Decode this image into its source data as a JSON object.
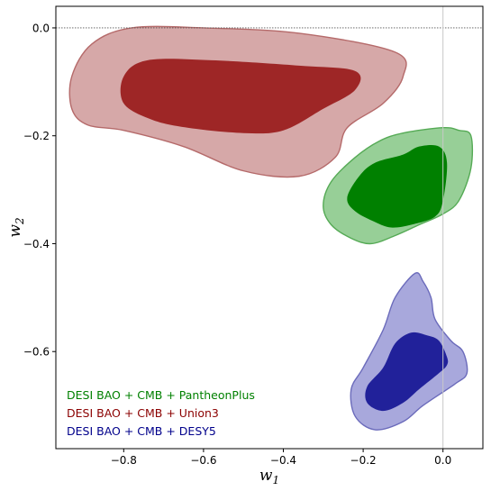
{
  "chart_data": {
    "type": "contour",
    "title": "",
    "xlabel": "w",
    "xlabel_sub": "1",
    "ylabel": "w",
    "ylabel_sub": "2",
    "xlim": [
      -0.97,
      0.1
    ],
    "ylim": [
      -0.78,
      0.04
    ],
    "xticks": [
      -0.8,
      -0.6,
      -0.4,
      -0.2,
      0.0
    ],
    "yticks": [
      0.0,
      -0.2,
      -0.4,
      -0.6
    ],
    "xtick_labels": [
      "−0.8",
      "−0.6",
      "−0.4",
      "−0.2",
      "0.0"
    ],
    "ytick_labels": [
      "0.0",
      "−0.2",
      "−0.4",
      "−0.6"
    ],
    "reference_lines": {
      "x": 0.0,
      "y": 0.0
    },
    "grid": false,
    "legend_position": "lower-left",
    "series": [
      {
        "name": "DESI BAO + CMB + PantheonPlus",
        "color": "#008000",
        "inner_fill": "#008000",
        "outer_fill": "#97cf97",
        "outer_edge": "#55aa55",
        "outer_contour": [
          [
            -0.3,
            -0.33
          ],
          [
            -0.28,
            -0.285
          ],
          [
            -0.22,
            -0.24
          ],
          [
            -0.16,
            -0.21
          ],
          [
            -0.1,
            -0.195
          ],
          [
            0.0,
            -0.185
          ],
          [
            0.04,
            -0.19
          ],
          [
            0.07,
            -0.2
          ],
          [
            0.07,
            -0.26
          ],
          [
            0.04,
            -0.32
          ],
          [
            0.0,
            -0.345
          ],
          [
            -0.06,
            -0.365
          ],
          [
            -0.12,
            -0.385
          ],
          [
            -0.18,
            -0.4
          ],
          [
            -0.23,
            -0.39
          ],
          [
            -0.28,
            -0.365
          ]
        ],
        "inner_contour": [
          [
            -0.24,
            -0.315
          ],
          [
            -0.21,
            -0.275
          ],
          [
            -0.17,
            -0.25
          ],
          [
            -0.1,
            -0.235
          ],
          [
            -0.06,
            -0.22
          ],
          [
            -0.01,
            -0.22
          ],
          [
            0.01,
            -0.25
          ],
          [
            0.0,
            -0.32
          ],
          [
            -0.02,
            -0.35
          ],
          [
            -0.08,
            -0.365
          ],
          [
            -0.13,
            -0.37
          ],
          [
            -0.17,
            -0.36
          ],
          [
            -0.22,
            -0.34
          ]
        ],
        "label_color": "#008000"
      },
      {
        "name": "DESI BAO + CMB + Union3",
        "color": "#8b0000",
        "inner_fill": "#9e2626",
        "outer_fill": "#d6a8a8",
        "outer_edge": "#b56a6a",
        "outer_contour": [
          [
            -0.93,
            -0.15
          ],
          [
            -0.93,
            -0.09
          ],
          [
            -0.88,
            -0.03
          ],
          [
            -0.78,
            0.0
          ],
          [
            -0.6,
            0.0
          ],
          [
            -0.36,
            -0.01
          ],
          [
            -0.12,
            -0.045
          ],
          [
            -0.1,
            -0.09
          ],
          [
            -0.15,
            -0.14
          ],
          [
            -0.24,
            -0.185
          ],
          [
            -0.27,
            -0.24
          ],
          [
            -0.36,
            -0.275
          ],
          [
            -0.5,
            -0.265
          ],
          [
            -0.65,
            -0.22
          ],
          [
            -0.8,
            -0.19
          ],
          [
            -0.89,
            -0.18
          ]
        ],
        "inner_contour": [
          [
            -0.8,
            -0.14
          ],
          [
            -0.8,
            -0.09
          ],
          [
            -0.74,
            -0.06
          ],
          [
            -0.58,
            -0.06
          ],
          [
            -0.36,
            -0.07
          ],
          [
            -0.22,
            -0.08
          ],
          [
            -0.22,
            -0.115
          ],
          [
            -0.3,
            -0.15
          ],
          [
            -0.4,
            -0.19
          ],
          [
            -0.5,
            -0.195
          ],
          [
            -0.64,
            -0.185
          ],
          [
            -0.73,
            -0.17
          ]
        ],
        "label_color": "#8b0000"
      },
      {
        "name": "DESI BAO + CMB + DESY5",
        "color": "#00008b",
        "inner_fill": "#21219a",
        "outer_fill": "#a8a8dc",
        "outer_edge": "#6b6bbb",
        "outer_contour": [
          [
            -0.22,
            -0.72
          ],
          [
            -0.23,
            -0.67
          ],
          [
            -0.2,
            -0.63
          ],
          [
            -0.15,
            -0.56
          ],
          [
            -0.12,
            -0.5
          ],
          [
            -0.07,
            -0.455
          ],
          [
            -0.05,
            -0.47
          ],
          [
            -0.03,
            -0.5
          ],
          [
            -0.02,
            -0.54
          ],
          [
            0.02,
            -0.58
          ],
          [
            0.05,
            -0.6
          ],
          [
            0.06,
            -0.64
          ],
          [
            0.03,
            -0.66
          ],
          [
            -0.05,
            -0.7
          ],
          [
            -0.1,
            -0.73
          ],
          [
            -0.17,
            -0.745
          ]
        ],
        "inner_contour": [
          [
            -0.19,
            -0.695
          ],
          [
            -0.19,
            -0.665
          ],
          [
            -0.15,
            -0.63
          ],
          [
            -0.12,
            -0.585
          ],
          [
            -0.08,
            -0.565
          ],
          [
            -0.04,
            -0.57
          ],
          [
            -0.01,
            -0.58
          ],
          [
            0.01,
            -0.61
          ],
          [
            0.01,
            -0.625
          ],
          [
            -0.01,
            -0.64
          ],
          [
            -0.06,
            -0.67
          ],
          [
            -0.1,
            -0.695
          ],
          [
            -0.15,
            -0.71
          ]
        ],
        "label_color": "#00008b"
      }
    ]
  }
}
